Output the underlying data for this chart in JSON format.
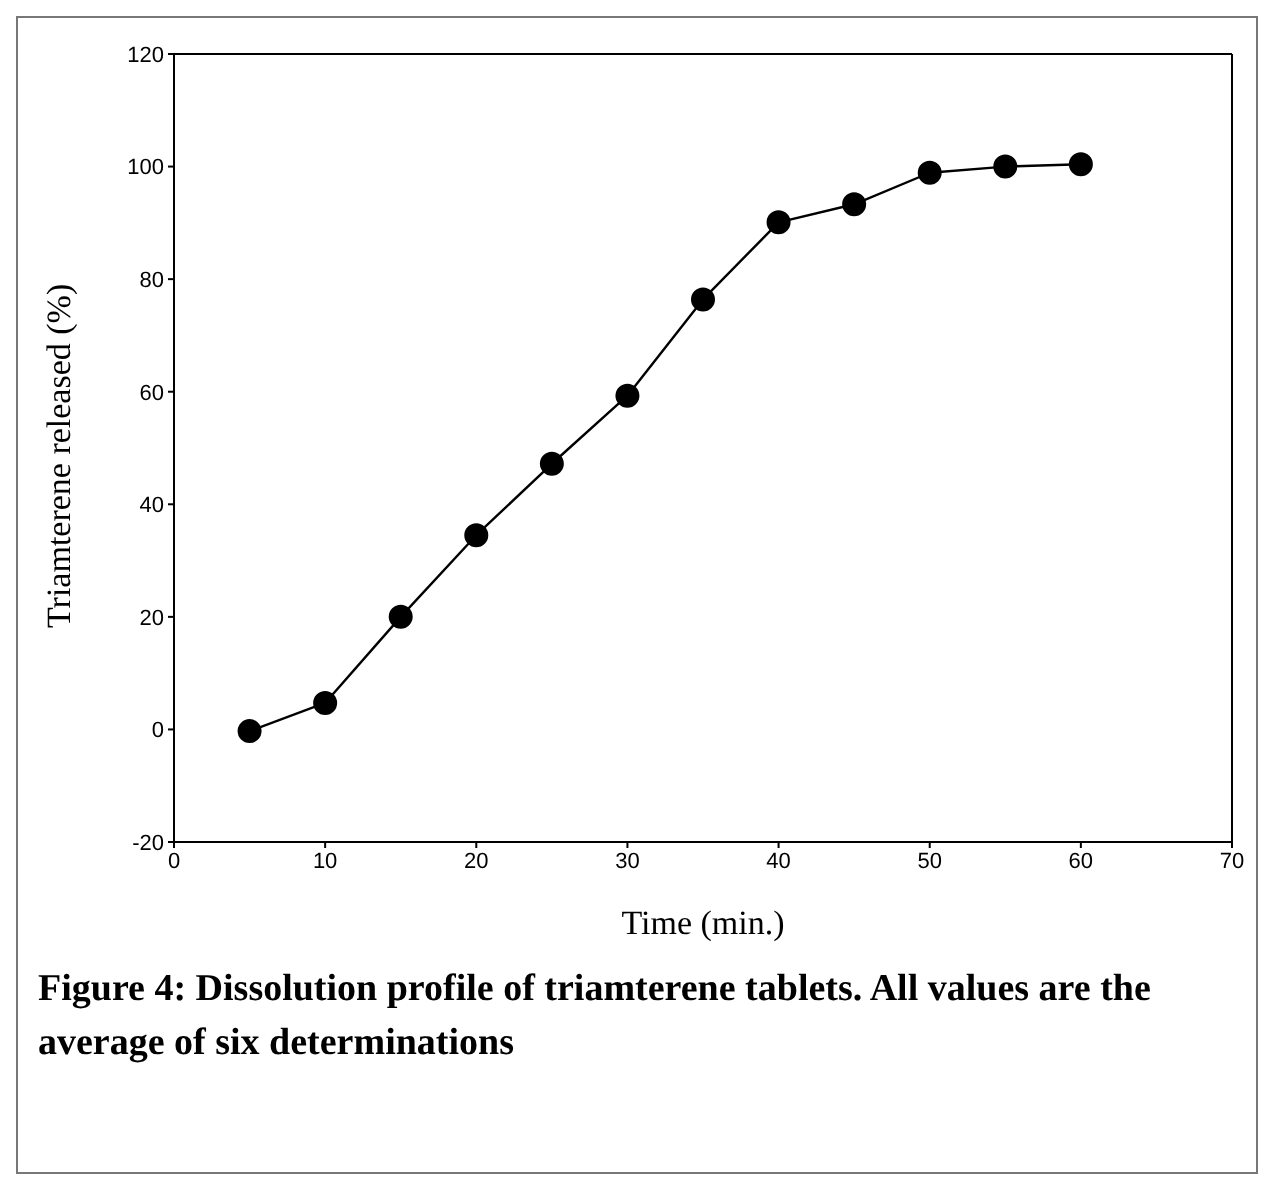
{
  "chart_data": {
    "type": "line",
    "xlabel": "Time (min.)",
    "ylabel": "Triamterene released (%)",
    "x": [
      5,
      10,
      15,
      20,
      25,
      30,
      35,
      40,
      45,
      50,
      55,
      60
    ],
    "series": [
      {
        "color": "#000000",
        "values": [
          -0.3,
          4.7,
          20,
          34.5,
          47.2,
          59.3,
          76.4,
          90.1,
          93.3,
          98.9,
          100,
          100.4
        ]
      }
    ],
    "xlim": [
      0,
      70
    ],
    "xticks": [
      0,
      10,
      20,
      30,
      40,
      50,
      60,
      70
    ],
    "ylim": [
      -20,
      120
    ],
    "yticks": [
      -20,
      0,
      20,
      40,
      60,
      80,
      100,
      120
    ],
    "grid": false,
    "legend": false,
    "marker": "circle",
    "line_style": "solid",
    "annotations": [
      "Figure 4: Dissolution profile of triamterene tablets. All values are the average of six determinations"
    ]
  }
}
